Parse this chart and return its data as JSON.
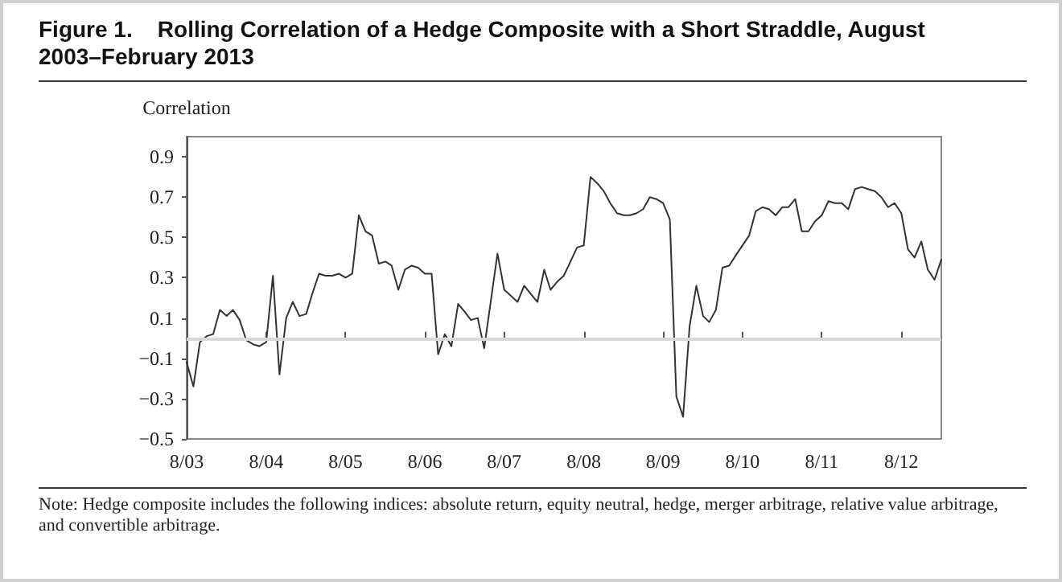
{
  "chart_data": {
    "type": "line",
    "title": "Figure 1.    Rolling Correlation of a Hedge Composite with a Short Straddle, August 2003–February 2013",
    "ylabel": "Correlation",
    "annotations": [
      "Note: Hedge composite includes the following indices: absolute return, equity neutral, hedge, merger arbitrage, relative value arbitrage, and convertible arbitrage."
    ],
    "x": [
      "2003-08",
      "2003-09",
      "2003-10",
      "2003-11",
      "2003-12",
      "2004-01",
      "2004-02",
      "2004-03",
      "2004-04",
      "2004-05",
      "2004-06",
      "2004-07",
      "2004-08",
      "2004-09",
      "2004-10",
      "2004-11",
      "2004-12",
      "2005-01",
      "2005-02",
      "2005-03",
      "2005-04",
      "2005-05",
      "2005-06",
      "2005-07",
      "2005-08",
      "2005-09",
      "2005-10",
      "2005-11",
      "2005-12",
      "2006-01",
      "2006-02",
      "2006-03",
      "2006-04",
      "2006-05",
      "2006-06",
      "2006-07",
      "2006-08",
      "2006-09",
      "2006-10",
      "2006-11",
      "2006-12",
      "2007-01",
      "2007-02",
      "2007-03",
      "2007-04",
      "2007-05",
      "2007-07",
      "2007-08",
      "2007-09",
      "2007-10",
      "2007-11",
      "2007-12",
      "2008-01",
      "2008-02",
      "2008-03",
      "2008-04",
      "2008-05",
      "2008-06",
      "2008-07",
      "2008-08",
      "2008-09",
      "2008-10",
      "2008-11",
      "2008-12",
      "2009-01",
      "2009-02",
      "2009-03",
      "2009-04",
      "2009-05",
      "2009-06",
      "2009-07",
      "2009-08",
      "2009-09",
      "2009-10",
      "2009-11",
      "2009-12",
      "2010-01",
      "2010-02",
      "2010-03",
      "2010-04",
      "2010-05",
      "2010-06",
      "2010-07",
      "2010-08",
      "2010-09",
      "2010-10",
      "2010-11",
      "2010-12",
      "2011-01",
      "2011-02",
      "2011-03",
      "2011-04",
      "2011-05",
      "2011-06",
      "2011-07",
      "2011-08",
      "2011-09",
      "2011-10",
      "2011-11",
      "2011-12",
      "2012-01",
      "2012-02",
      "2012-03",
      "2012-04",
      "2012-05",
      "2012-06",
      "2012-07",
      "2012-08",
      "2012-09",
      "2012-10",
      "2012-11",
      "2012-12",
      "2013-01",
      "2013-02"
    ],
    "series": [
      {
        "color": "#333333",
        "values": [
          -0.12,
          -0.24,
          -0.02,
          0.01,
          0.02,
          0.14,
          0.11,
          0.14,
          0.09,
          -0.01,
          -0.03,
          -0.04,
          -0.02,
          0.31,
          -0.18,
          0.1,
          0.18,
          0.11,
          0.12,
          0.22,
          0.32,
          0.31,
          0.31,
          0.32,
          0.3,
          0.32,
          0.61,
          0.53,
          0.51,
          0.37,
          0.38,
          0.36,
          0.24,
          0.34,
          0.36,
          0.35,
          0.32,
          0.32,
          -0.08,
          0.02,
          -0.04,
          0.17,
          0.13,
          0.09,
          0.1,
          -0.05,
          0.42,
          0.24,
          0.21,
          0.18,
          0.26,
          0.22,
          0.18,
          0.34,
          0.24,
          0.28,
          0.31,
          0.38,
          0.45,
          0.46,
          0.8,
          0.77,
          0.73,
          0.67,
          0.62,
          0.61,
          0.61,
          0.62,
          0.64,
          0.7,
          0.69,
          0.67,
          0.59,
          -0.29,
          -0.39,
          0.06,
          0.26,
          0.11,
          0.08,
          0.14,
          0.35,
          0.36,
          0.41,
          0.46,
          0.51,
          0.63,
          0.65,
          0.64,
          0.61,
          0.65,
          0.65,
          0.69,
          0.53,
          0.53,
          0.58,
          0.61,
          0.68,
          0.67,
          0.67,
          0.64,
          0.74,
          0.75,
          0.74,
          0.73,
          0.7,
          0.65,
          0.67,
          0.62,
          0.44,
          0.4,
          0.48,
          0.34,
          0.29,
          0.39
        ]
      }
    ],
    "xlim": [
      "2003-08",
      "2013-02"
    ],
    "xticks": [
      {
        "value": "2003-08",
        "label": "8/03"
      },
      {
        "value": "2004-08",
        "label": "8/04"
      },
      {
        "value": "2005-08",
        "label": "8/05"
      },
      {
        "value": "2006-08",
        "label": "8/06"
      },
      {
        "value": "2007-08",
        "label": "8/07"
      },
      {
        "value": "2008-08",
        "label": "8/08"
      },
      {
        "value": "2009-08",
        "label": "8/09"
      },
      {
        "value": "2010-08",
        "label": "8/10"
      },
      {
        "value": "2011-08",
        "label": "8/11"
      },
      {
        "value": "2012-08",
        "label": "8/12"
      }
    ],
    "ylim": [
      -0.5,
      1.0
    ],
    "yticks": [
      -0.5,
      -0.3,
      -0.1,
      0.1,
      0.3,
      0.5,
      0.7,
      0.9
    ],
    "ref_lines": [
      {
        "axis": "y",
        "value": 0,
        "color": "#d9d9d9"
      }
    ],
    "grid": false,
    "legend": false,
    "marker": "none",
    "line_style": "solid"
  }
}
